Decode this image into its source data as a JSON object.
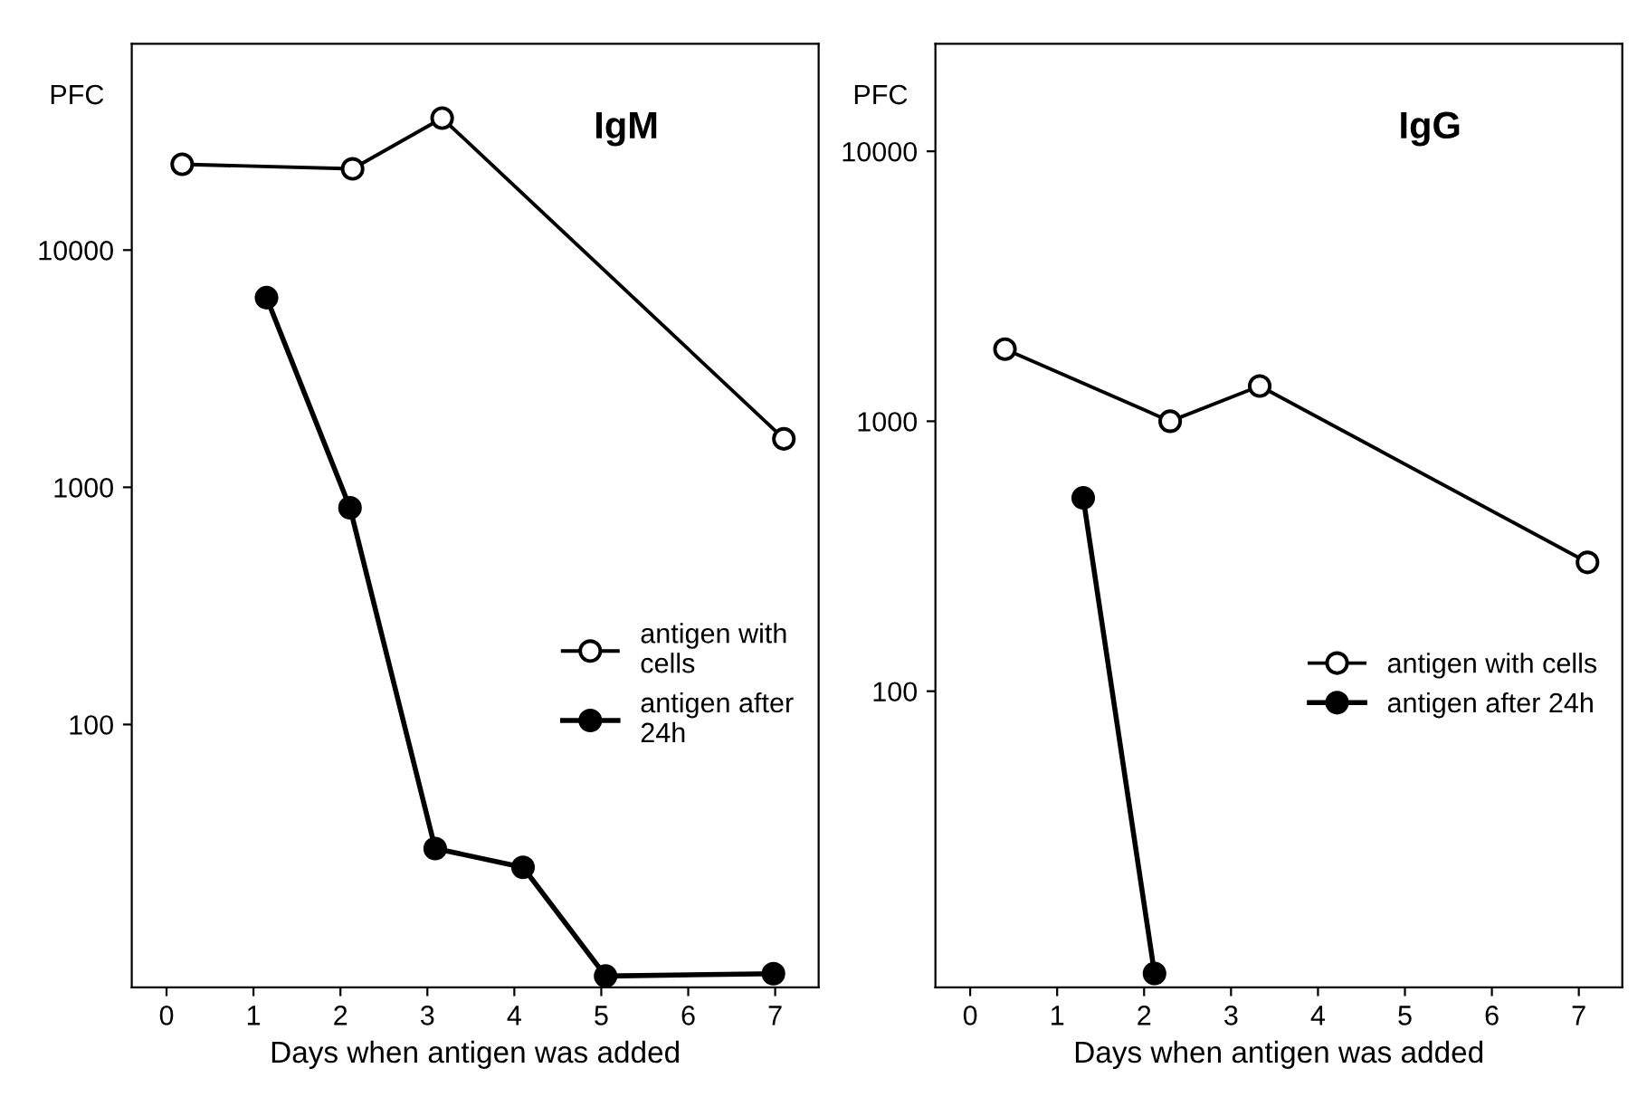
{
  "chart_data": [
    {
      "type": "line",
      "title": "IgM",
      "xlabel": "Days when antigen was added",
      "ylabel": "PFC",
      "log": "y",
      "xlim": [
        -0.4,
        7.5
      ],
      "xticks": [
        0,
        1,
        2,
        3,
        4,
        5,
        6,
        7
      ],
      "ylim": [
        7.8,
        74000
      ],
      "yticks": [
        100,
        1000,
        10000
      ],
      "marker": "circle",
      "legend": "center right",
      "grid": false,
      "series": [
        {
          "name": "antigen with\ncells",
          "color": "#ffffff",
          "x": [
            0.18,
            2.14,
            3.17,
            7.1
          ],
          "values": [
            23000,
            22000,
            36000,
            1600
          ]
        },
        {
          "name": "antigen after\n24h",
          "color": "#000000",
          "x": [
            1.15,
            2.11,
            3.09,
            4.1,
            5.05,
            6.98
          ],
          "values": [
            6300,
            820,
            30,
            25,
            8.7,
            8.9
          ]
        }
      ]
    },
    {
      "type": "line",
      "title": "IgG",
      "xlabel": "Days when antigen was added",
      "ylabel": "PFC",
      "log": "y",
      "xlim": [
        -0.4,
        7.5
      ],
      "xticks": [
        0,
        1,
        2,
        3,
        4,
        5,
        6,
        7
      ],
      "ylim": [
        8,
        25000
      ],
      "yticks": [
        100,
        1000,
        10000
      ],
      "marker": "circle",
      "legend": "center right",
      "grid": false,
      "series": [
        {
          "name": "antigen with cells",
          "color": "#ffffff",
          "x": [
            0.4,
            2.3,
            3.33,
            7.1
          ],
          "values": [
            1850,
            1000,
            1350,
            300
          ]
        },
        {
          "name": "antigen after 24h",
          "color": "#000000",
          "x": [
            1.3,
            2.12
          ],
          "values": [
            520,
            9
          ]
        }
      ]
    }
  ]
}
